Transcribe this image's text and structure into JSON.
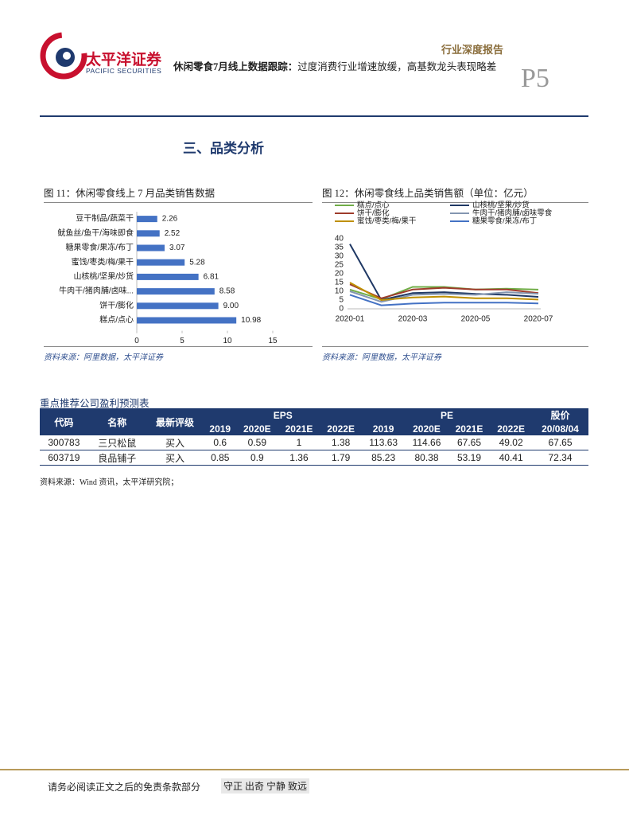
{
  "header": {
    "logo_cn": "太平洋证券",
    "logo_en": "PACIFIC SECURITIES",
    "report_type": "行业深度报告",
    "title_bold": "休闲零食7月线上数据跟踪：",
    "title": "过度消费行业增速放缓，高基数龙头表现略差",
    "page": "P5"
  },
  "section_title": "三、品类分析",
  "chart_data": [
    {
      "type": "bar",
      "orientation": "horizontal",
      "title": "图 11：休闲零食线上 7 月品类销售数据",
      "categories": [
        "豆干制品/蔬菜干",
        "鱿鱼丝/鱼干/海味即食",
        "糖果零食/果冻/布丁",
        "蜜饯/枣类/梅/果干",
        "山核桃/坚果/炒货",
        "牛肉干/猪肉脯/卤味...",
        "饼干/膨化",
        "糕点/点心"
      ],
      "values": [
        2.26,
        2.52,
        3.07,
        5.28,
        6.81,
        8.58,
        9.0,
        10.98
      ],
      "value_labels": [
        "2.26",
        "2.52",
        "3.07",
        "5.28",
        "6.81",
        "8.58",
        "9.00",
        "10.98"
      ],
      "color": "#4472c4",
      "xlim": [
        0,
        15
      ],
      "xticks": [
        0,
        5,
        10,
        15
      ],
      "source": "资料来源：阿里数据，太平洋证券"
    },
    {
      "type": "line",
      "title": "图 12：休闲零食线上品类销售额（单位：亿元）",
      "categories": [
        "2020-01",
        null,
        "2020-03",
        null,
        "2020-05",
        null,
        "2020-07"
      ],
      "series": [
        {
          "name": "糕点/点心",
          "color": "#70ad47",
          "values": [
            11,
            5.5,
            12.5,
            12.5,
            11,
            11.5,
            10.98
          ]
        },
        {
          "name": "山核桃/坚果/炒货",
          "color": "#1f3864",
          "values": [
            37,
            5,
            9,
            9.5,
            8.5,
            8,
            6.81
          ]
        },
        {
          "name": "饼干/膨化",
          "color": "#9e3b2b",
          "values": [
            14,
            6,
            11,
            12,
            11,
            11,
            9.0
          ]
        },
        {
          "name": "牛肉干/猪肉脯/卤味零食",
          "color": "#8496b0",
          "values": [
            10,
            4,
            8,
            8.5,
            8,
            9.5,
            8.58
          ]
        },
        {
          "name": "蜜饯/枣类/梅/果干",
          "color": "#bf9000",
          "values": [
            15,
            5,
            6.5,
            7,
            6,
            6,
            5.28
          ]
        },
        {
          "name": "糖果零食/果冻/布丁",
          "color": "#4472c4",
          "values": [
            8,
            2,
            3,
            3.5,
            3.5,
            3.5,
            3.07
          ]
        }
      ],
      "ylim": [
        0,
        40
      ],
      "yticks": [
        0,
        5,
        10,
        15,
        20,
        25,
        30,
        35,
        40
      ],
      "source": "资料来源：阿里数据，太平洋证券"
    }
  ],
  "table": {
    "title": "重点推荐公司盈利预测表",
    "header_top": [
      "代码",
      "名称",
      "最新评级",
      "EPS",
      "PE",
      "股价"
    ],
    "header_sub": [
      "2019",
      "2020E",
      "2021E",
      "2022E",
      "2019",
      "2020E",
      "2021E",
      "2022E",
      "20/08/04"
    ],
    "rows": [
      [
        "300783",
        "三只松鼠",
        "买入",
        "0.6",
        "0.59",
        "1",
        "1.38",
        "113.63",
        "114.66",
        "67.65",
        "49.02",
        "67.65"
      ],
      [
        "603719",
        "良品铺子",
        "买入",
        "0.85",
        "0.9",
        "1.36",
        "1.79",
        "85.23",
        "80.38",
        "53.19",
        "40.41",
        "72.34"
      ]
    ],
    "source": "资料来源：Wind 资讯，太平洋研究院；"
  },
  "footer": {
    "disclaimer": "请务必阅读正文之后的免责条款部分",
    "motto": "守正 出奇 宁静 致远"
  }
}
